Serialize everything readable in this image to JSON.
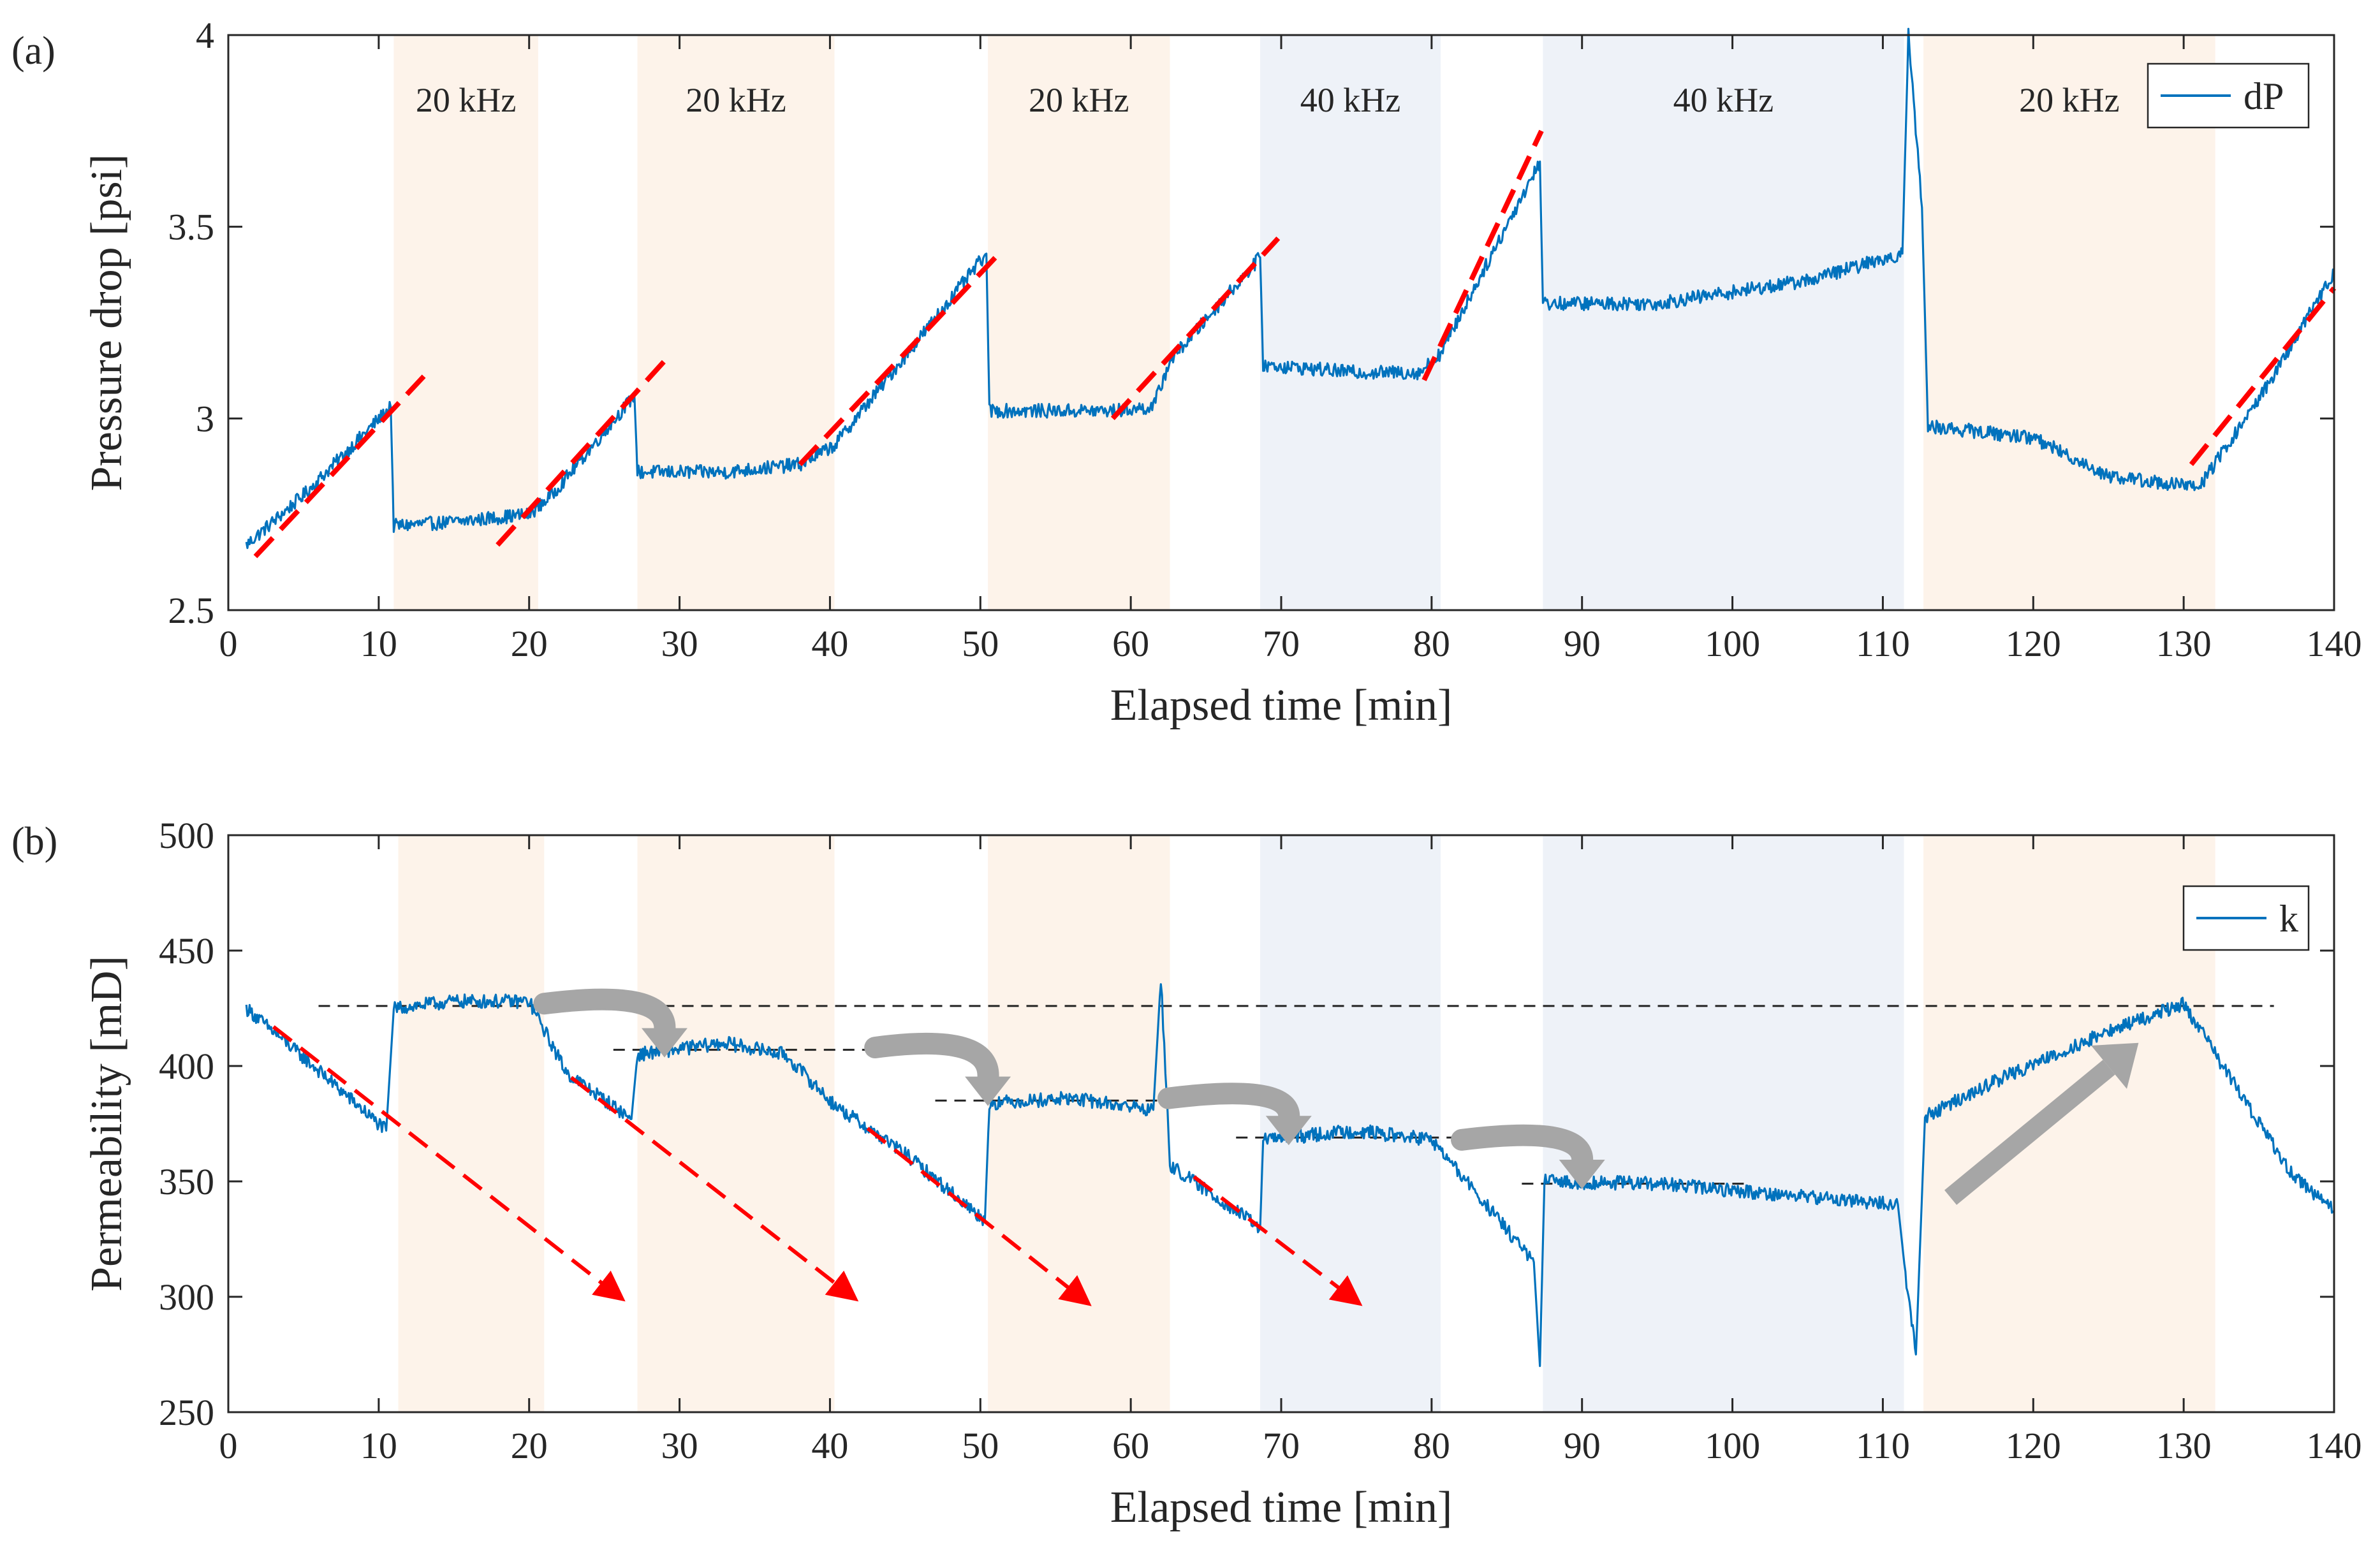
{
  "chart_data": [
    {
      "type": "line",
      "panel_label": "(a)",
      "xlabel": "Elapsed time [min]",
      "ylabel": "Pressure drop [psi]",
      "xlim": [
        0,
        140
      ],
      "ylim": [
        2.5,
        4
      ],
      "xticks": [
        0,
        10,
        20,
        30,
        40,
        50,
        60,
        70,
        80,
        90,
        100,
        110,
        120,
        130,
        140
      ],
      "yticks": [
        2.5,
        3,
        3.5,
        4
      ],
      "grid": false,
      "legend": {
        "entries": [
          "dP"
        ],
        "placement": "top-right"
      },
      "bands": [
        {
          "x0": 11,
          "x1": 20.6,
          "label": "20 kHz",
          "freq": "20kHz"
        },
        {
          "x0": 27.2,
          "x1": 40.3,
          "label": "20 kHz",
          "freq": "20kHz"
        },
        {
          "x0": 50.5,
          "x1": 62.6,
          "label": "20 kHz",
          "freq": "20kHz"
        },
        {
          "x0": 68.6,
          "x1": 80.6,
          "label": "40 kHz",
          "freq": "40kHz"
        },
        {
          "x0": 87.4,
          "x1": 111.4,
          "label": "40 kHz",
          "freq": "40kHz"
        },
        {
          "x0": 112.7,
          "x1": 132.1,
          "label": "20 kHz",
          "freq": "20kHz"
        }
      ],
      "series": [
        {
          "name": "dP",
          "color": "#0072BD",
          "x": [
            1.2,
            5,
            10.8,
            11,
            15,
            20,
            21.5,
            27,
            27.2,
            33,
            38,
            40.3,
            50.4,
            50.6,
            55,
            59,
            61.5,
            62.6,
            68.6,
            68.8,
            75,
            79.2,
            80.6,
            87.2,
            87.4,
            95,
            105,
            111.3,
            111.7,
            112.6,
            113,
            120,
            125,
            131,
            135,
            140
          ],
          "y": [
            2.67,
            2.8,
            3.03,
            2.72,
            2.73,
            2.75,
            2.8,
            3.06,
            2.86,
            2.86,
            2.88,
            2.93,
            3.43,
            3.02,
            3.02,
            3.02,
            3.03,
            3.15,
            3.42,
            3.14,
            3.12,
            3.12,
            3.17,
            3.67,
            3.3,
            3.3,
            3.36,
            3.43,
            4.0,
            3.55,
            2.98,
            2.95,
            2.85,
            2.82,
            3.05,
            3.38
          ]
        }
      ],
      "annotations": {
        "trend_lines": [
          {
            "x": [
              1.8,
              13
            ],
            "y": [
              2.64,
              3.11
            ]
          },
          {
            "x": [
              17.9,
              29
            ],
            "y": [
              2.67,
              3.15
            ]
          },
          {
            "x": [
              38,
              51
            ],
            "y": [
              2.88,
              3.42
            ]
          },
          {
            "x": [
              58.8,
              69.8
            ],
            "y": [
              3.0,
              3.47
            ]
          },
          {
            "x": [
              79.5,
              87.3
            ],
            "y": [
              3.1,
              3.75
            ]
          },
          {
            "x": [
              130.5,
              140
            ],
            "y": [
              2.88,
              3.34
            ]
          }
        ]
      }
    },
    {
      "type": "line",
      "panel_label": "(b)",
      "xlabel": "Elapsed time [min]",
      "ylabel": "Permeability [mD]",
      "xlim": [
        0,
        140
      ],
      "ylim": [
        250,
        500
      ],
      "xticks": [
        0,
        10,
        20,
        30,
        40,
        50,
        60,
        70,
        80,
        90,
        100,
        110,
        120,
        130,
        140
      ],
      "yticks": [
        250,
        300,
        350,
        400,
        450,
        500
      ],
      "grid": false,
      "legend": {
        "entries": [
          "k"
        ],
        "placement": "top-right"
      },
      "bands": [
        {
          "x0": 11.3,
          "x1": 21,
          "freq": "20kHz"
        },
        {
          "x0": 27.2,
          "x1": 40.3,
          "freq": "20kHz"
        },
        {
          "x0": 50.5,
          "x1": 62.6,
          "freq": "20kHz"
        },
        {
          "x0": 68.6,
          "x1": 80.6,
          "freq": "40kHz"
        },
        {
          "x0": 87.4,
          "x1": 111.4,
          "freq": "40kHz"
        },
        {
          "x0": 112.7,
          "x1": 132.1,
          "freq": "20kHz"
        }
      ],
      "series": [
        {
          "name": "k",
          "color": "#0072BD",
          "x": [
            1.2,
            6,
            10.5,
            11,
            15,
            20,
            22.5,
            26.8,
            27.2,
            33,
            37,
            40.3,
            45,
            50.3,
            50.6,
            56,
            61.5,
            62,
            62.6,
            68.6,
            68.8,
            75,
            80,
            86.8,
            87.2,
            87.5,
            95,
            102,
            111,
            111.5,
            112.2,
            112.8,
            118,
            125,
            130,
            133,
            137,
            140
          ],
          "y": [
            425,
            398,
            372,
            425,
            428,
            428,
            397,
            377,
            405,
            410,
            405,
            383,
            362,
            333,
            384,
            386,
            381,
            438,
            357,
            330,
            368,
            372,
            368,
            315,
            270,
            350,
            349,
            345,
            340,
            310,
            275,
            378,
            395,
            415,
            427,
            396,
            355,
            337
          ]
        }
      ],
      "annotations": {
        "reference_lines": [
          {
            "x": [
              6,
              136
            ],
            "y": 426
          },
          {
            "x": [
              25.6,
              43
            ],
            "y": 407
          },
          {
            "x": [
              47,
              64
            ],
            "y": 385
          },
          {
            "x": [
              67,
              84
            ],
            "y": 369
          },
          {
            "x": [
              86,
              101
            ],
            "y": 349
          }
        ],
        "trend_arrows": [
          {
            "x": [
              3,
              26
            ],
            "y": [
              417,
              300
            ]
          },
          {
            "x": [
              22.8,
              41.5
            ],
            "y": [
              395,
              300
            ]
          },
          {
            "x": [
              42.5,
              57
            ],
            "y": [
              373,
              298
            ]
          },
          {
            "x": [
              64.2,
              75
            ],
            "y": [
              352,
              298
            ]
          }
        ],
        "transition_arrows": [
          {
            "x": [
              21,
              29
            ],
            "y": [
              427,
              407
            ]
          },
          {
            "x": [
              43,
              50.5
            ],
            "y": [
              408,
              386
            ]
          },
          {
            "x": [
              62.5,
              70.5
            ],
            "y": [
              386,
              369
            ]
          },
          {
            "x": [
              82,
              90
            ],
            "y": [
              368,
              350
            ]
          }
        ],
        "recovery_arrow": {
          "x": [
            114.5,
            127
          ],
          "y": [
            343,
            410
          ]
        }
      }
    }
  ]
}
